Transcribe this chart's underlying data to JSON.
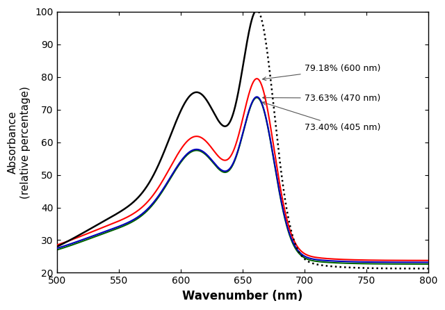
{
  "xlabel": "Wavenumber (nm)",
  "ylabel": "Absorbance\n(relative percentage)",
  "xlim": [
    500,
    800
  ],
  "ylim": [
    20,
    100
  ],
  "xticks": [
    500,
    550,
    600,
    650,
    700,
    750,
    800
  ],
  "yticks": [
    20,
    30,
    40,
    50,
    60,
    70,
    80,
    90,
    100
  ],
  "annotations": [
    {
      "text": "79.18% (600 nm)",
      "xy_x": 664,
      "xy_y": 79.18,
      "txt_x": 700,
      "txt_y": 82.5
    },
    {
      "text": "73.63% (470 nm)",
      "xy_x": 664,
      "xy_y": 73.63,
      "txt_x": 700,
      "txt_y": 73.5
    },
    {
      "text": "73.40% (405 nm)",
      "xy_x": 664,
      "xy_y": 72.5,
      "txt_x": 700,
      "txt_y": 64.5
    }
  ],
  "curves": [
    {
      "color": "#000000",
      "peak": 100.0,
      "baseline": 28.0,
      "linewidth": 1.8,
      "label": "black"
    },
    {
      "color": "#ff0000",
      "peak": 79.18,
      "baseline": 28.5,
      "linewidth": 1.5,
      "label": "red"
    },
    {
      "color": "#0000bb",
      "peak": 73.63,
      "baseline": 27.5,
      "linewidth": 1.5,
      "label": "blue"
    },
    {
      "color": "#006400",
      "peak": 73.4,
      "baseline": 27.0,
      "linewidth": 1.5,
      "label": "green"
    }
  ],
  "dotted_split_nm": 663,
  "background_color": "#ffffff"
}
